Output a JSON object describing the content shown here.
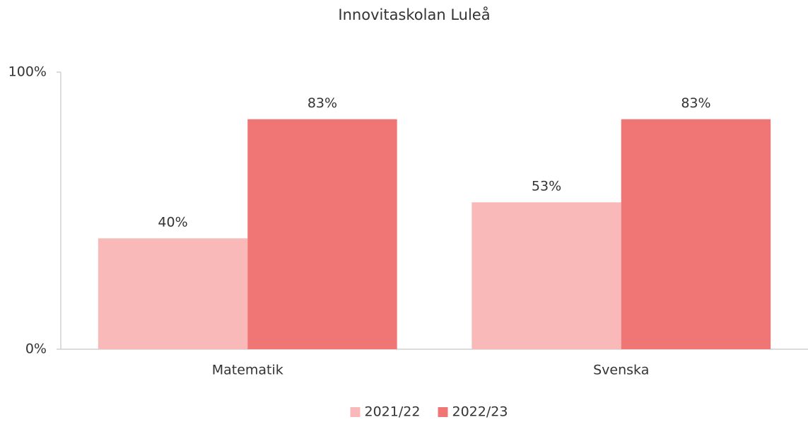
{
  "chart_data": {
    "type": "bar",
    "title": "Innovitaskolan Luleå",
    "categories": [
      "Matematik",
      "Svenska"
    ],
    "series": [
      {
        "name": "2021/22",
        "color": "#f9b9b9",
        "values": [
          40,
          53
        ],
        "value_labels": [
          "40%",
          "53%"
        ]
      },
      {
        "name": "2022/23",
        "color": "#f07575",
        "values": [
          83,
          83
        ],
        "value_labels": [
          "83%",
          "83%"
        ]
      }
    ],
    "ylim": [
      0,
      100
    ],
    "yticks": [
      {
        "value": 0,
        "label": "0%"
      },
      {
        "value": 100,
        "label": "100%"
      }
    ],
    "legend": "bottom"
  }
}
